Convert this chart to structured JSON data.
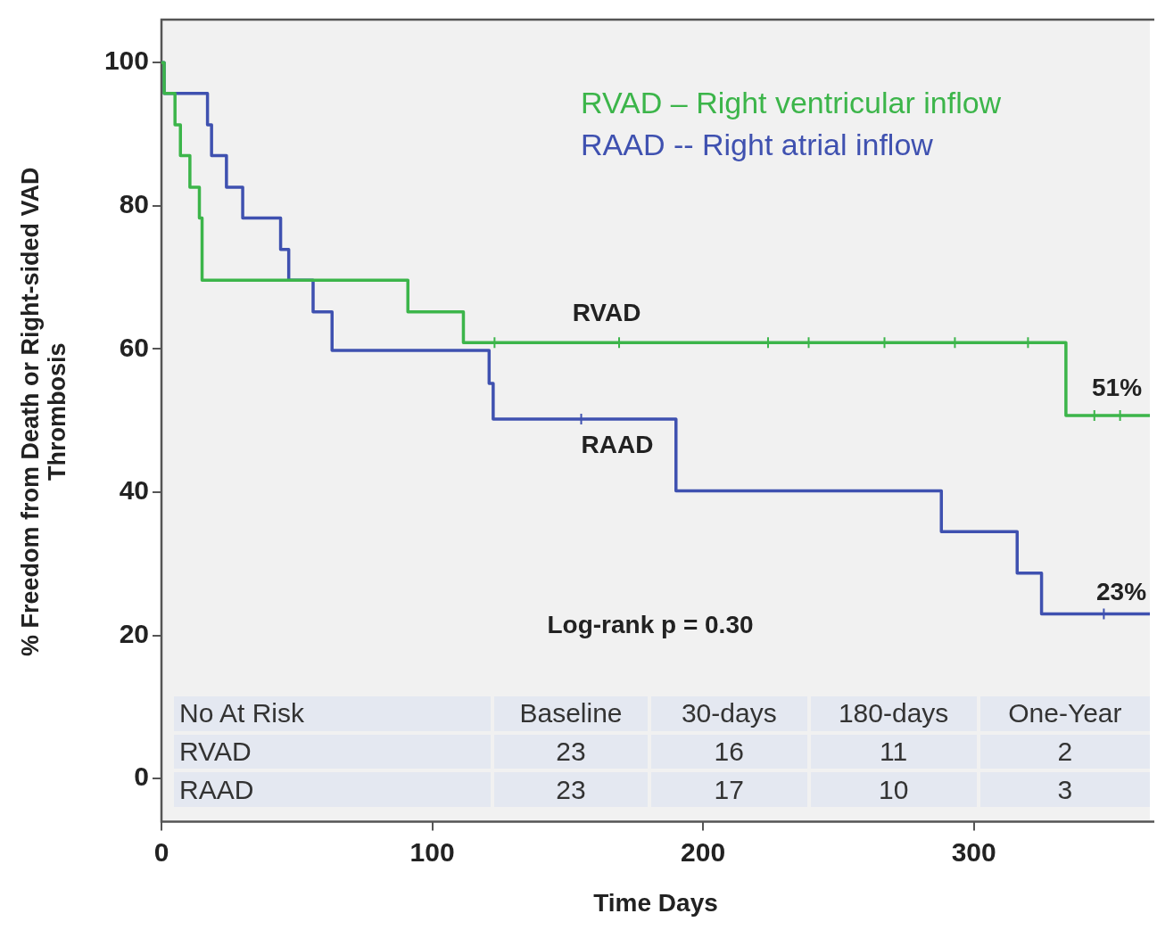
{
  "chart_data": {
    "type": "step",
    "xlabel": "Time Days",
    "ylabel": "% Freedom from Death or Right-sided VAD Thrombosis",
    "xlim": [
      0,
      365
    ],
    "xticks": [
      0,
      100,
      200,
      300
    ],
    "ylim": [
      -6,
      106
    ],
    "yticks": [
      0,
      20,
      40,
      60,
      80,
      100
    ],
    "grid": false,
    "legend": "top right",
    "series": [
      {
        "name": "RVAD – Right ventricular inflow",
        "type": "step",
        "marker": "none",
        "color": "#3cb54a",
        "x": [
          0,
          1,
          5,
          7,
          10.5,
          14,
          15,
          91,
          111.5,
          334,
          365
        ],
        "values": [
          100,
          95.7,
          91.3,
          87,
          82.6,
          78.3,
          69.6,
          65.2,
          60.9,
          50.7,
          50.7
        ]
      },
      {
        "name": "RAAD -- Right atrial inflow",
        "type": "step",
        "marker": "none",
        "color": "#3f51b0",
        "x": [
          0,
          1,
          17,
          18.5,
          24,
          30,
          44,
          47,
          56,
          63,
          121,
          122.5,
          190,
          288,
          316,
          325,
          365
        ],
        "values": [
          100,
          95.7,
          91.3,
          87,
          82.6,
          78.3,
          73.9,
          69.6,
          65.2,
          59.8,
          55.2,
          50.2,
          40.2,
          34.5,
          28.7,
          23,
          23
        ]
      },
      {
        "type": "scatter",
        "marker": "cross",
        "color": "#3cb54a",
        "x": [
          123,
          169,
          224,
          239,
          267,
          293,
          320,
          344.5,
          354
        ],
        "values": [
          60.9,
          60.9,
          60.9,
          60.9,
          60.9,
          60.9,
          60.9,
          50.7,
          50.7
        ]
      },
      {
        "type": "scatter",
        "marker": "cross",
        "color": "#3f51b0",
        "x": [
          155,
          348
        ],
        "values": [
          50.2,
          23
        ]
      }
    ],
    "annotations": [
      "RVAD",
      "RAAD",
      "51%",
      "23%",
      "Log-rank p = 0.30",
      "No At Risk",
      "Baseline",
      "30-days",
      "180-days",
      "One-Year",
      "RVAD",
      "23",
      "16",
      "11",
      "2",
      "RAAD",
      "23",
      "17",
      "10",
      "3"
    ]
  }
}
